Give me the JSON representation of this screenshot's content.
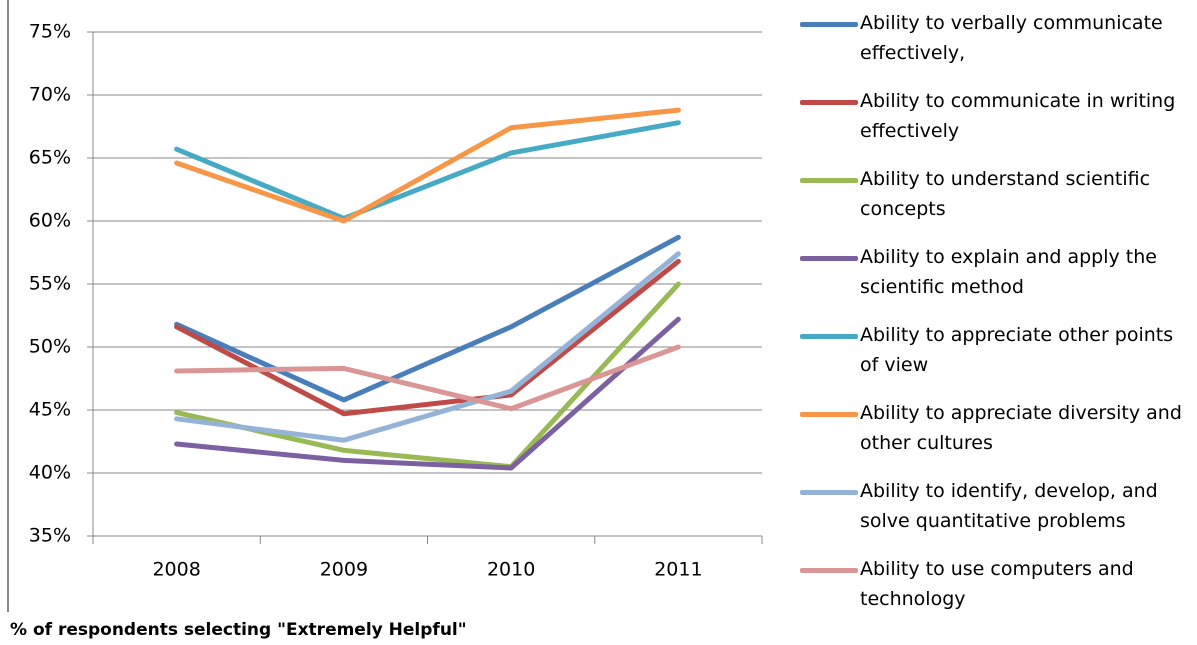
{
  "chart_data": {
    "type": "line",
    "note": "% of respondents selecting \"Extremely Helpful\"",
    "categories": [
      "2008",
      "2009",
      "2010",
      "2011"
    ],
    "ylim": [
      35,
      75
    ],
    "yticks": [
      {
        "value": 35,
        "label": "35%"
      },
      {
        "value": 40,
        "label": "40%"
      },
      {
        "value": 45,
        "label": "45%"
      },
      {
        "value": 50,
        "label": "50%"
      },
      {
        "value": 55,
        "label": "55%"
      },
      {
        "value": 60,
        "label": "60%"
      },
      {
        "value": 65,
        "label": "65%"
      },
      {
        "value": 70,
        "label": "70%"
      },
      {
        "value": 75,
        "label": "75%"
      }
    ],
    "grid": true,
    "legend": "right",
    "series": [
      {
        "name": "Ability to verbally communicate effectively,",
        "color": "#4a7ebb",
        "values": [
          51.8,
          45.8,
          51.6,
          58.7
        ]
      },
      {
        "name": "Ability to communicate in writing effectively",
        "color": "#be4b48",
        "values": [
          51.6,
          44.7,
          46.2,
          56.8
        ]
      },
      {
        "name": "Ability to understand scientific concepts",
        "color": "#98b954",
        "values": [
          44.8,
          41.8,
          40.5,
          55.0
        ]
      },
      {
        "name": "Ability to explain and apply the scientific method",
        "color": "#7d60a0",
        "values": [
          42.3,
          41.0,
          40.4,
          52.2
        ]
      },
      {
        "name": "Ability to appreciate other points of view",
        "color": "#46aac5",
        "values": [
          65.7,
          60.2,
          65.4,
          67.8
        ]
      },
      {
        "name": "Ability to appreciate diversity and other cultures",
        "color": "#f79646",
        "values": [
          64.6,
          60.0,
          67.4,
          68.8
        ]
      },
      {
        "name": "Ability to identify, develop, and solve quantitative problems",
        "color": "#95b3d7",
        "values": [
          44.3,
          42.6,
          46.5,
          57.4
        ]
      },
      {
        "name": "Ability to use computers and technology",
        "color": "#d99694",
        "values": [
          48.1,
          48.3,
          45.1,
          50.0
        ]
      }
    ]
  }
}
